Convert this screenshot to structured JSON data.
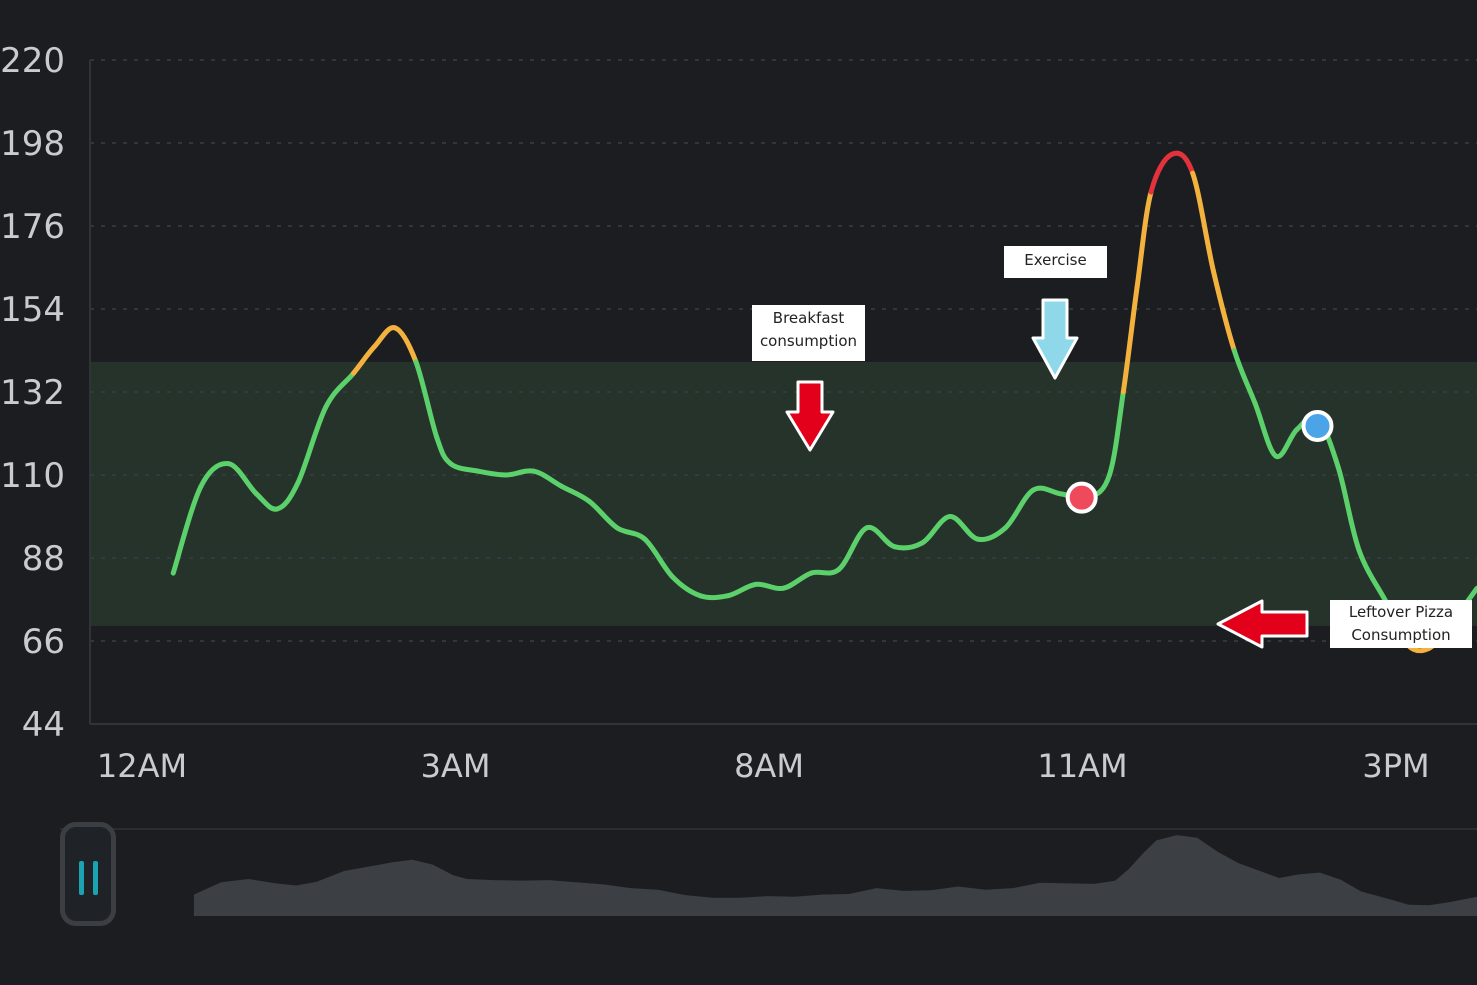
{
  "colors": {
    "background": "#1b1d21",
    "target_band": "#25332a",
    "in_range": "#5bd06b",
    "elevated": "#f3b23e",
    "high": "#e2323c",
    "breakfast_marker": "#ee4a5c",
    "exercise_marker": "#4ba3e8",
    "pizza_marker": "#ee4a5c",
    "breakfast_arrow": "#e3001b",
    "exercise_arrow": "#8fd8ea",
    "pizza_arrow": "#e3001b",
    "scrub_handle_bars": "#1aa3b0"
  },
  "chart_data": {
    "type": "line",
    "title": "",
    "xlabel": "",
    "ylabel": "",
    "ylim": [
      44,
      220
    ],
    "yticks": [
      "220",
      "198",
      "176",
      "154",
      "132",
      "110",
      "88",
      "66",
      "44"
    ],
    "xticks": [
      "12AM",
      "3AM",
      "8AM",
      "11AM",
      "3PM"
    ],
    "grid": true,
    "target_range": [
      70,
      140
    ],
    "series": [
      {
        "values": [
          [
            0.06,
            84
          ],
          [
            0.08,
            107
          ],
          [
            0.1,
            113
          ],
          [
            0.12,
            105
          ],
          [
            0.135,
            101
          ],
          [
            0.15,
            108
          ],
          [
            0.17,
            128
          ],
          [
            0.19,
            137
          ],
          [
            0.205,
            144
          ],
          [
            0.22,
            149
          ],
          [
            0.235,
            140
          ],
          [
            0.25,
            120
          ],
          [
            0.26,
            113
          ],
          [
            0.28,
            111
          ],
          [
            0.3,
            110
          ],
          [
            0.32,
            111
          ],
          [
            0.34,
            107
          ],
          [
            0.36,
            103
          ],
          [
            0.38,
            96
          ],
          [
            0.4,
            93
          ],
          [
            0.42,
            83
          ],
          [
            0.44,
            78
          ],
          [
            0.46,
            78
          ],
          [
            0.48,
            81
          ],
          [
            0.5,
            80
          ],
          [
            0.52,
            84
          ],
          [
            0.54,
            85
          ],
          [
            0.56,
            96
          ],
          [
            0.58,
            91
          ],
          [
            0.6,
            92
          ],
          [
            0.62,
            99
          ],
          [
            0.64,
            93
          ],
          [
            0.66,
            96
          ],
          [
            0.68,
            106
          ],
          [
            0.7,
            105
          ],
          [
            0.72,
            104
          ],
          [
            0.735,
            110
          ],
          [
            0.745,
            132
          ],
          [
            0.755,
            160
          ],
          [
            0.765,
            185
          ],
          [
            0.78,
            195
          ],
          [
            0.795,
            190
          ],
          [
            0.81,
            164
          ],
          [
            0.825,
            143
          ],
          [
            0.84,
            129
          ],
          [
            0.855,
            115
          ],
          [
            0.87,
            122
          ],
          [
            0.885,
            125
          ],
          [
            0.9,
            112
          ],
          [
            0.915,
            90
          ],
          [
            0.935,
            76
          ],
          [
            0.95,
            65
          ],
          [
            0.965,
            64
          ],
          [
            0.98,
            70
          ],
          [
            1.0,
            80
          ]
        ]
      }
    ],
    "annotations": [
      {
        "label": "Breakfast consumption",
        "label_lines": [
          "Breakfast",
          "consumption"
        ],
        "x": 0.715,
        "y": 104
      },
      {
        "label": "Exercise",
        "label_lines": [
          "Exercise"
        ],
        "x": 0.885,
        "y": 123
      },
      {
        "label": "Leftover Pizza Consumption",
        "label_lines": [
          "Leftover Pizza",
          "Consumption"
        ],
        "x": 0.975,
        "y": 69
      }
    ]
  }
}
